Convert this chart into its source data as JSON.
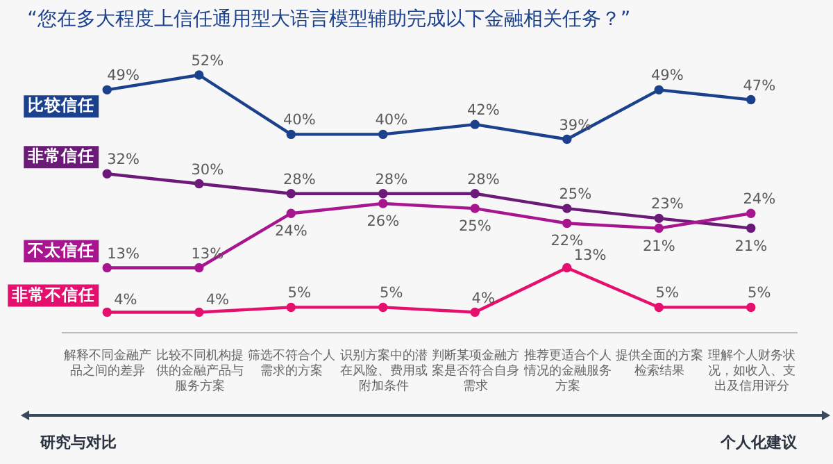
{
  "chart_data": {
    "type": "line",
    "title": "“您在多大程度上信任通用型大语言模型辅助完成以下金融相关任务？”",
    "categories": [
      "解释不同金融产品之间的差异",
      "比较不同机构提供的金融产品与服务方案",
      "筛选不符合个人需求的方案",
      "识别方案中的潜在风险、费用或附加条件",
      "判断某项金融方案是否符合自身需求",
      "推荐更适合个人情况的金融服务方案",
      "提供全面的方案检索结果",
      "理解个人财务状况，如收入、支出及信用评分"
    ],
    "series": [
      {
        "name": "比较信任",
        "color": "#1c418c",
        "values": [
          49,
          52,
          40,
          40,
          42,
          39,
          49,
          47
        ],
        "value_labels": [
          "49%",
          "52%",
          "40%",
          "40%",
          "42%",
          "39%",
          "49%",
          "47%"
        ]
      },
      {
        "name": "非常信任",
        "color": "#6b1a78",
        "values": [
          32,
          30,
          28,
          28,
          28,
          25,
          23,
          21
        ],
        "value_labels": [
          "32%",
          "30%",
          "28%",
          "28%",
          "28%",
          "25%",
          "23%",
          "21%"
        ]
      },
      {
        "name": "不太信任",
        "color": "#a8168f",
        "values": [
          13,
          13,
          24,
          26,
          25,
          22,
          21,
          24
        ],
        "value_labels": [
          "13%",
          "13%",
          "24%",
          "26%",
          "25%",
          "22%",
          "21%",
          "24%"
        ]
      },
      {
        "name": "非常不信任",
        "color": "#e5106e",
        "values": [
          4,
          4,
          5,
          5,
          4,
          13,
          5,
          5
        ],
        "value_labels": [
          "4%",
          "4%",
          "5%",
          "5%",
          "4%",
          "13%",
          "5%",
          "5%"
        ]
      }
    ],
    "annotations": [
      "研究与对比",
      "个人化建议"
    ],
    "tick_labels": "x",
    "marker": "circle",
    "line_style": "solid",
    "legend": false,
    "grid": false
  }
}
